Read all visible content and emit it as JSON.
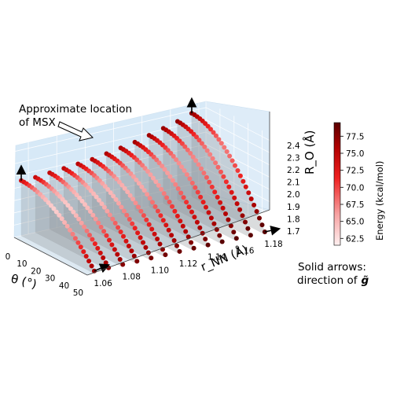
{
  "chart_data": {
    "type": "scatter",
    "projection": "3d",
    "axes": {
      "theta": {
        "label": "θ (°)",
        "ticks": [
          "0",
          "10",
          "20",
          "30",
          "40",
          "50"
        ],
        "range": [
          0,
          52
        ]
      },
      "r_nn": {
        "label": "r_NN (Å)",
        "ticks": [
          "1.06",
          "1.08",
          "1.10",
          "1.12",
          "1.14",
          "1.16",
          "1.18"
        ],
        "range": [
          1.05,
          1.185
        ]
      },
      "r_o": {
        "label": "R_O (Å)",
        "ticks": [
          "1.7",
          "1.8",
          "1.9",
          "2.0",
          "2.1",
          "2.2",
          "2.3",
          "2.4"
        ],
        "range": [
          1.7,
          2.45
        ]
      }
    },
    "r_nn_values": [
      1.055,
      1.065,
      1.075,
      1.085,
      1.095,
      1.105,
      1.115,
      1.125,
      1.135,
      1.145,
      1.155,
      1.165,
      1.175
    ],
    "series_shape": {
      "theta_range": [
        0,
        52
      ],
      "points_per_curve": 28,
      "r_o_at_theta0": [
        2.15,
        2.15,
        2.16,
        2.17,
        2.18,
        2.19,
        2.21,
        2.23,
        2.25,
        2.28,
        2.31,
        2.34,
        2.38
      ],
      "r_o_at_theta52": 1.72
    },
    "colorbar": {
      "label": "Energy (kcal/mol)",
      "ticks": [
        "62.5",
        "65.0",
        "67.5",
        "70.0",
        "72.5",
        "75.0",
        "77.5"
      ],
      "range": [
        61.5,
        79.5
      ],
      "colors": [
        "#fff0f0",
        "#f7a3a3",
        "#ee2020",
        "#b00000",
        "#5a0000"
      ]
    },
    "annotations": {
      "msx_line1": "Approximate location",
      "msx_line2": "of MSX",
      "arrows_line1": "Solid arrows:",
      "arrows_line2": "direction of"
    }
  }
}
